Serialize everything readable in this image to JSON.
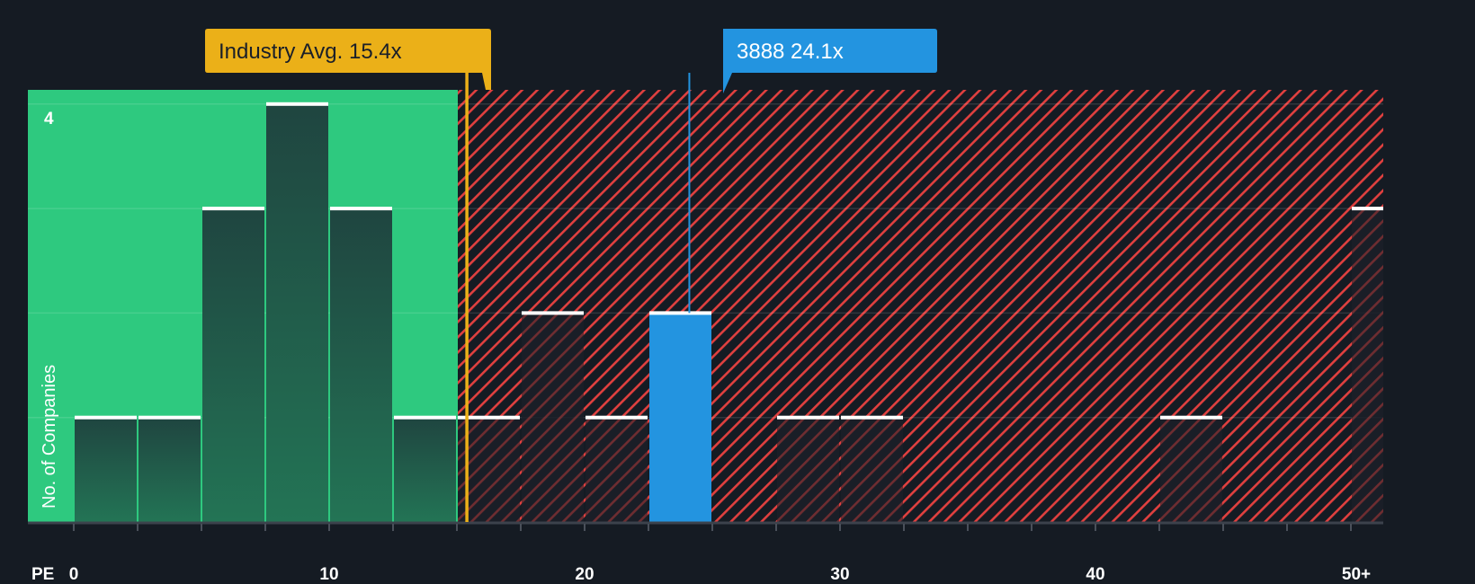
{
  "chart_data": {
    "type": "bar",
    "title": "",
    "xlabel": "PE",
    "ylabel": "No. of Companies",
    "x_tick_labels": [
      "0",
      "10",
      "20",
      "30",
      "40",
      "50+"
    ],
    "x_tick_values": [
      0,
      10,
      20,
      30,
      40,
      50
    ],
    "y_tick_labels": [
      "4"
    ],
    "ylim": [
      0,
      4.1
    ],
    "xlim": [
      -1.8,
      51.3
    ],
    "bin_width": 2.5,
    "grid": true,
    "bins": [
      {
        "range": "0-2.5",
        "x0": 0,
        "x1": 2.5,
        "count": 1
      },
      {
        "range": "2.5-5",
        "x0": 2.5,
        "x1": 5,
        "count": 1
      },
      {
        "range": "5-7.5",
        "x0": 5,
        "x1": 7.5,
        "count": 3
      },
      {
        "range": "7.5-10",
        "x0": 7.5,
        "x1": 10,
        "count": 4
      },
      {
        "range": "10-12.5",
        "x0": 10,
        "x1": 12.5,
        "count": 3
      },
      {
        "range": "12.5-15",
        "x0": 12.5,
        "x1": 15,
        "count": 1
      },
      {
        "range": "15-17.5",
        "x0": 15,
        "x1": 17.5,
        "count": 1
      },
      {
        "range": "17.5-20",
        "x0": 17.5,
        "x1": 20,
        "count": 2
      },
      {
        "range": "20-22.5",
        "x0": 20,
        "x1": 22.5,
        "count": 1
      },
      {
        "range": "22.5-25",
        "x0": 22.5,
        "x1": 25,
        "count": 2,
        "highlight": true
      },
      {
        "range": "27.5-30",
        "x0": 27.5,
        "x1": 30,
        "count": 1
      },
      {
        "range": "30-32.5",
        "x0": 30,
        "x1": 32.5,
        "count": 1
      },
      {
        "range": "42.5-45",
        "x0": 42.5,
        "x1": 45,
        "count": 1
      },
      {
        "range": "50+",
        "x0": 50,
        "x1": 51.3,
        "count": 3
      }
    ],
    "zones": [
      {
        "name": "below-industry-average",
        "from": -1.8,
        "to": 15.0,
        "color": "#2ec97f"
      },
      {
        "name": "above-industry-average",
        "from": 15.0,
        "to": 51.3,
        "color": "#e0403f",
        "pattern": "diagonal-hatch"
      }
    ],
    "annotations": [
      {
        "label": "Industry Avg. 15.4x",
        "value": 15.4,
        "color": "#ebb018",
        "text_color": "#1a1f29"
      },
      {
        "label": "3888 24.1x",
        "value": 24.1,
        "color": "#2394e0",
        "text_color": "#ffffff"
      }
    ]
  },
  "labels": {
    "pe_axis": "PE",
    "y_axis": "No. of Companies",
    "y_max_tick": "4",
    "industry_callout": "Industry Avg. 15.4x",
    "company_callout": "3888 24.1x"
  },
  "colors": {
    "background": "#151b23",
    "green_zone": "#2ec97f",
    "green_bar": "#1f4a3e",
    "hatch": "#e0403f",
    "industry": "#ebb018",
    "company": "#2394e0",
    "bar_cap": "#ffffff",
    "axis": "#3c424c"
  }
}
